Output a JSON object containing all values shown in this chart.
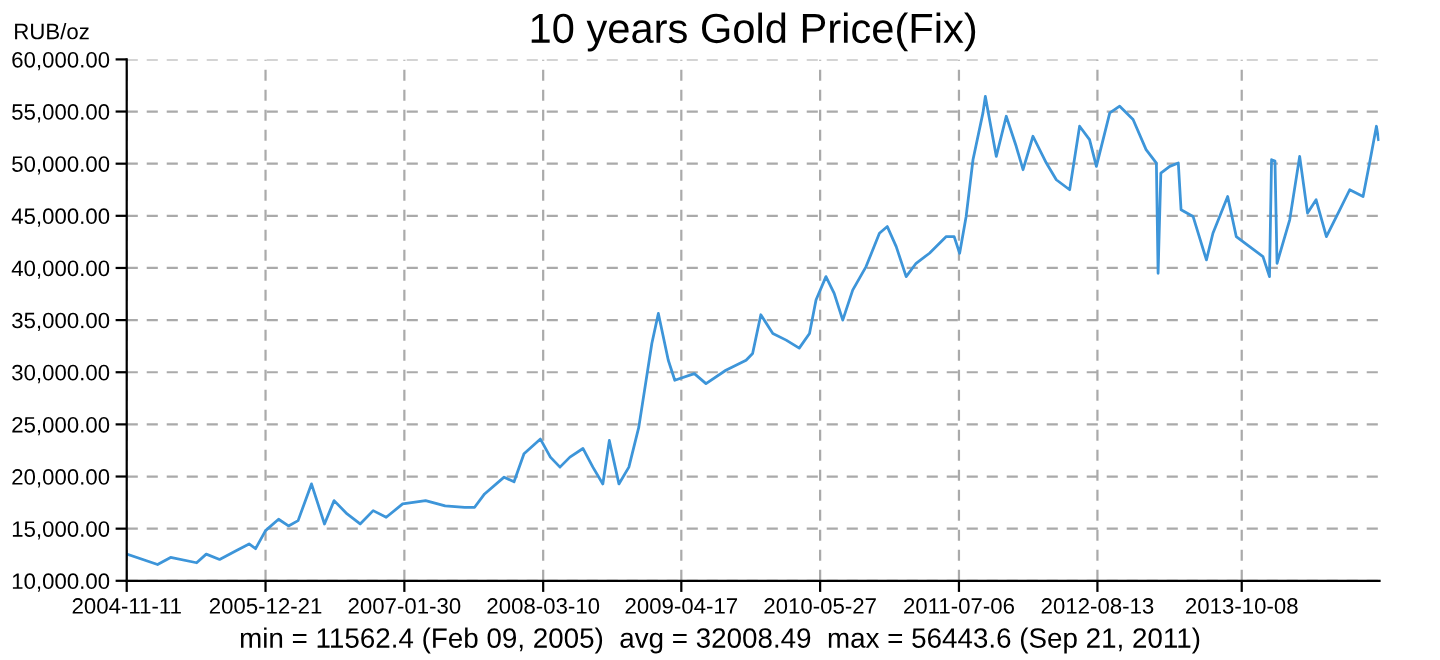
{
  "chart_data": {
    "type": "line",
    "title": "10 years Gold Price(Fix)",
    "ylabel": "RUB/oz",
    "annotations": [
      "min = 11562.4 (Feb 09, 2005)  avg = 32008.49  max = 56443.6 (Sep 21, 2011)"
    ],
    "x": [
      "2004-11-11",
      "2005-02-09",
      "2005-03-19",
      "2005-06-03",
      "2005-07-01",
      "2005-08-09",
      "2005-09-26",
      "2005-11-03",
      "2005-11-22",
      "2005-12-21",
      "2006-01-28",
      "2006-02-26",
      "2006-03-26",
      "2006-05-04",
      "2006-06-11",
      "2006-07-09",
      "2006-08-16",
      "2006-09-23",
      "2006-10-31",
      "2006-12-08",
      "2007-01-25",
      "2007-04-02",
      "2007-05-29",
      "2007-07-25",
      "2007-08-23",
      "2007-09-21",
      "2007-11-17",
      "2007-12-16",
      "2008-01-14",
      "2008-03-02",
      "2008-03-31",
      "2008-04-28",
      "2008-05-27",
      "2008-07-04",
      "2008-08-02",
      "2008-08-31",
      "2008-09-19",
      "2008-10-17",
      "2008-11-15",
      "2008-12-14",
      "2009-01-21",
      "2009-02-09",
      "2009-03-10",
      "2009-03-29",
      "2009-05-25",
      "2009-06-28",
      "2009-08-25",
      "2009-10-23",
      "2009-11-11",
      "2009-12-05",
      "2010-01-09",
      "2010-02-17",
      "2010-03-27",
      "2010-04-26",
      "2010-05-15",
      "2010-06-13",
      "2010-07-07",
      "2010-08-01",
      "2010-08-30",
      "2010-10-08",
      "2010-11-16",
      "2010-12-09",
      "2011-01-04",
      "2011-02-02",
      "2011-03-03",
      "2011-04-11",
      "2011-05-30",
      "2011-06-22",
      "2011-07-08",
      "2011-07-27",
      "2011-08-16",
      "2011-09-14",
      "2011-09-21",
      "2011-10-23",
      "2011-11-21",
      "2011-12-20",
      "2012-01-09",
      "2012-02-07",
      "2012-03-17",
      "2012-04-15",
      "2012-05-24",
      "2012-06-22",
      "2012-07-21",
      "2012-08-10",
      "2012-09-18",
      "2012-10-17",
      "2012-11-25",
      "2013-01-02",
      "2013-02-01",
      "2013-02-06",
      "2013-02-14",
      "2013-03-12",
      "2013-04-06",
      "2013-04-14",
      "2013-05-19",
      "2013-06-27",
      "2013-07-16",
      "2013-08-28",
      "2013-09-22",
      "2013-10-31",
      "2013-12-09",
      "2013-12-28",
      "2014-01-03",
      "2014-01-13",
      "2014-01-19",
      "2014-02-25",
      "2014-03-26",
      "2014-04-18",
      "2014-05-13",
      "2014-06-12",
      "2014-07-21",
      "2014-08-19",
      "2014-09-27",
      "2014-10-16",
      "2014-11-05",
      "2014-11-11"
    ],
    "series": [
      {
        "color": "#3d95d9",
        "values": [
          12560,
          11562.4,
          12240,
          11730,
          12560,
          12050,
          12880,
          13530,
          13080,
          14810,
          15900,
          15260,
          15770,
          19290,
          15450,
          17690,
          16410,
          15450,
          16730,
          16090,
          17370,
          17690,
          17180,
          17050,
          17050,
          18330,
          19940,
          19490,
          22180,
          23590,
          21860,
          20900,
          21860,
          22690,
          20900,
          19290,
          23460,
          19290,
          20900,
          24740,
          32760,
          35640,
          31150,
          29230,
          29870,
          28910,
          30190,
          31150,
          31790,
          35510,
          33720,
          33080,
          32310,
          33720,
          36920,
          39170,
          37560,
          35000,
          37880,
          40130,
          43330,
          43970,
          42050,
          39170,
          40450,
          41410,
          43010,
          43010,
          41410,
          44940,
          50380,
          54870,
          56443.6,
          50700,
          54550,
          51670,
          49420,
          52630,
          50060,
          48460,
          47500,
          53590,
          52310,
          49740,
          54870,
          55510,
          54230,
          51350,
          50060,
          39490,
          49100,
          49740,
          50060,
          45580,
          44940,
          40770,
          43330,
          46850,
          43010,
          42050,
          41090,
          39170,
          50380,
          50250,
          40450,
          44620,
          50700,
          45260,
          46540,
          43010,
          45580,
          47500,
          46850,
          50060,
          53590,
          52310
        ]
      }
    ],
    "xlim": [
      "2004-11-11",
      "2014-11-14"
    ],
    "xticks": [
      "2004-11-11",
      "2005-12-21",
      "2007-01-30",
      "2008-03-10",
      "2009-04-17",
      "2010-05-27",
      "2011-07-06",
      "2012-08-13",
      "2013-10-08"
    ],
    "ylim": [
      10000,
      60000
    ],
    "yticks": [
      {
        "value": 10000,
        "label": "10,000.00"
      },
      {
        "value": 15000,
        "label": "15,000.00"
      },
      {
        "value": 20000,
        "label": "20,000.00"
      },
      {
        "value": 25000,
        "label": "25,000.00"
      },
      {
        "value": 30000,
        "label": "30,000.00"
      },
      {
        "value": 35000,
        "label": "35,000.00"
      },
      {
        "value": 40000,
        "label": "40,000.00"
      },
      {
        "value": 45000,
        "label": "45,000.00"
      },
      {
        "value": 50000,
        "label": "50,000.00"
      },
      {
        "value": 55000,
        "label": "55,000.00"
      },
      {
        "value": 60000,
        "label": "60,000.00"
      }
    ],
    "grid": true,
    "legend": false,
    "marker": "none",
    "line_style": "solid"
  }
}
